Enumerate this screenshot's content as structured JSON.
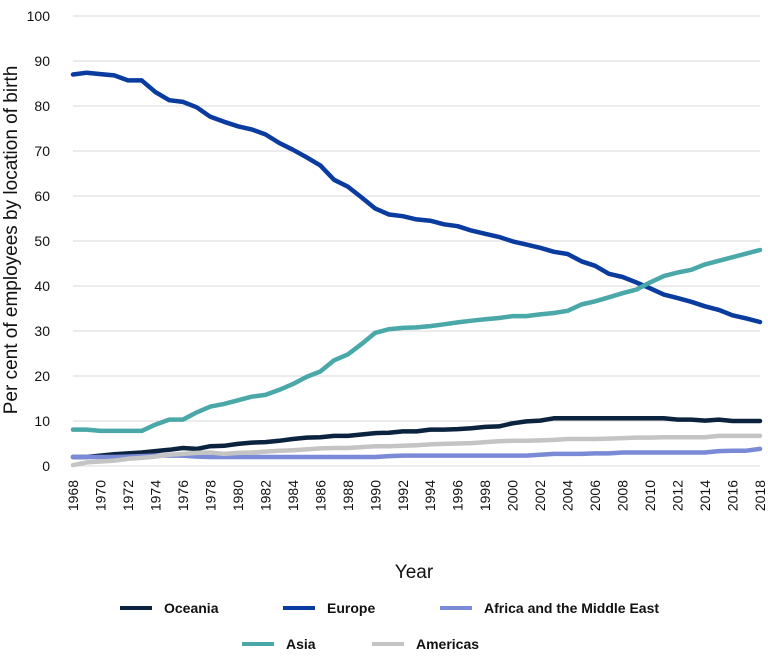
{
  "chart_data": {
    "type": "line",
    "xlabel": "Year",
    "ylabel": "Per cent of employees by location of birth",
    "ylim": [
      0,
      100
    ],
    "yticks": [
      0,
      10,
      20,
      30,
      40,
      50,
      60,
      70,
      80,
      90,
      100
    ],
    "xlim": [
      1968,
      2018
    ],
    "xticks": [
      "1968",
      "1970",
      "1972",
      "1974",
      "1976",
      "1978",
      "1980",
      "1982",
      "1984",
      "1986",
      "1988",
      "1990",
      "1992",
      "1994",
      "1996",
      "1998",
      "2000",
      "2002",
      "2004",
      "2006",
      "2008",
      "2010",
      "2012",
      "2014",
      "2016",
      "2018"
    ],
    "grid": "horizontal",
    "legend_position": "bottom",
    "x": [
      1968,
      1969,
      1970,
      1971,
      1972,
      1973,
      1974,
      1975,
      1976,
      1977,
      1978,
      1979,
      1980,
      1981,
      1982,
      1983,
      1984,
      1985,
      1986,
      1987,
      1988,
      1989,
      1990,
      1991,
      1992,
      1993,
      1994,
      1995,
      1996,
      1997,
      1998,
      1999,
      2000,
      2001,
      2002,
      2003,
      2004,
      2005,
      2006,
      2007,
      2008,
      2009,
      2010,
      2011,
      2012,
      2013,
      2014,
      2015,
      2016,
      2017,
      2018
    ],
    "series": [
      {
        "name": "Oceania",
        "color": "#0c2340",
        "values": [
          2,
          2,
          2.3,
          2.6,
          2.8,
          3,
          3.3,
          3.6,
          4,
          3.8,
          4.4,
          4.5,
          4.9,
          5.2,
          5.3,
          5.6,
          6,
          6.3,
          6.4,
          6.7,
          6.7,
          7,
          7.3,
          7.4,
          7.7,
          7.7,
          8.1,
          8.1,
          8.2,
          8.4,
          8.7,
          8.8,
          9.5,
          9.9,
          10.1,
          10.6,
          10.6,
          10.6,
          10.6,
          10.6,
          10.6,
          10.6,
          10.6,
          10.6,
          10.3,
          10.3,
          10.1,
          10.3,
          10,
          10,
          10
        ]
      },
      {
        "name": "Europe",
        "color": "#0a3ca0",
        "values": [
          87,
          87.4,
          87.1,
          86.8,
          85.7,
          85.7,
          83.1,
          81.3,
          80.9,
          79.7,
          77.6,
          76.5,
          75.5,
          74.8,
          73.7,
          71.8,
          70.3,
          68.6,
          66.8,
          63.6,
          62.1,
          59.7,
          57.2,
          55.9,
          55.5,
          54.8,
          54.5,
          53.7,
          53.3,
          52.3,
          51.6,
          50.9,
          49.9,
          49.2,
          48.5,
          47.6,
          47.1,
          45.5,
          44.5,
          42.7,
          42,
          40.8,
          39.5,
          38.1,
          37.3,
          36.5,
          35.5,
          34.7,
          33.5,
          32.8,
          32
        ]
      },
      {
        "name": "Africa and the Middle East",
        "color": "#7b8ad6",
        "values": [
          2,
          2,
          2,
          2,
          2.1,
          2.2,
          2.3,
          2.3,
          2.3,
          2.1,
          2,
          2,
          2,
          2,
          2,
          2,
          2,
          2,
          2,
          2,
          2,
          2,
          2,
          2.2,
          2.3,
          2.3,
          2.3,
          2.3,
          2.3,
          2.3,
          2.3,
          2.3,
          2.3,
          2.3,
          2.5,
          2.7,
          2.7,
          2.7,
          2.8,
          2.8,
          3,
          3,
          3,
          3,
          3,
          3,
          3,
          3.3,
          3.4,
          3.4,
          3.8
        ]
      },
      {
        "name": "Asia",
        "color": "#4aa8a8",
        "values": [
          8.1,
          8.1,
          7.8,
          7.8,
          7.8,
          7.8,
          9.2,
          10.3,
          10.3,
          11.9,
          13.2,
          13.8,
          14.6,
          15.4,
          15.8,
          16.9,
          18.2,
          19.8,
          21,
          23.5,
          24.8,
          27.1,
          29.6,
          30.4,
          30.7,
          30.8,
          31.1,
          31.5,
          31.9,
          32.3,
          32.6,
          32.9,
          33.3,
          33.3,
          33.7,
          34,
          34.5,
          35.9,
          36.6,
          37.5,
          38.4,
          39.2,
          40.8,
          42.2,
          43,
          43.6,
          44.8,
          45.6,
          46.4,
          47.2,
          48
        ]
      },
      {
        "name": "Americas",
        "color": "#c4c4c4",
        "values": [
          0.2,
          0.8,
          1,
          1.2,
          1.6,
          1.8,
          2.1,
          2.5,
          2.7,
          2.9,
          3,
          2.7,
          2.9,
          3,
          3.2,
          3.4,
          3.5,
          3.7,
          3.9,
          4,
          4,
          4.2,
          4.4,
          4.4,
          4.5,
          4.6,
          4.8,
          4.9,
          5,
          5.1,
          5.3,
          5.5,
          5.6,
          5.6,
          5.7,
          5.8,
          6,
          6,
          6,
          6.1,
          6.2,
          6.3,
          6.3,
          6.4,
          6.4,
          6.4,
          6.4,
          6.7,
          6.7,
          6.7,
          6.7
        ]
      }
    ]
  }
}
